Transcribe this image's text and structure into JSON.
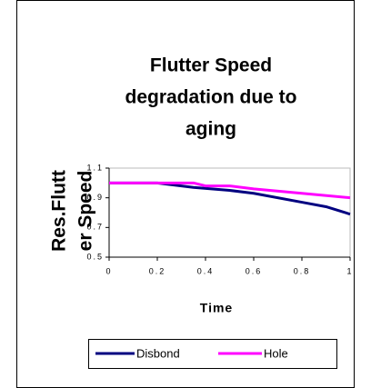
{
  "chart_data": {
    "type": "line",
    "title": [
      "Flutter Speed",
      "degradation due to",
      "aging"
    ],
    "y_label": [
      "Res.Flutt",
      "er Speed"
    ],
    "x_label": "Time",
    "xlim": [
      0,
      1
    ],
    "xticks": [
      0,
      0.2,
      0.4,
      0.6,
      0.8,
      1
    ],
    "ylim": [
      0.5,
      1.1
    ],
    "yticks": [
      0.5,
      0.7,
      0.9,
      1.1
    ],
    "grid": false,
    "legend": "bottom",
    "series": [
      {
        "name": "Disbond",
        "color": "#000080",
        "x": [
          0,
          0.2,
          0.35,
          0.5,
          0.6,
          0.8,
          0.9,
          1
        ],
        "values": [
          1.0,
          1.0,
          0.97,
          0.95,
          0.93,
          0.87,
          0.84,
          0.79
        ]
      },
      {
        "name": "Hole",
        "color": "#ff00ff",
        "x": [
          0,
          0.2,
          0.35,
          0.4,
          0.5,
          0.6,
          0.8,
          1
        ],
        "values": [
          1.0,
          1.0,
          1.0,
          0.98,
          0.98,
          0.96,
          0.93,
          0.9
        ]
      }
    ]
  }
}
